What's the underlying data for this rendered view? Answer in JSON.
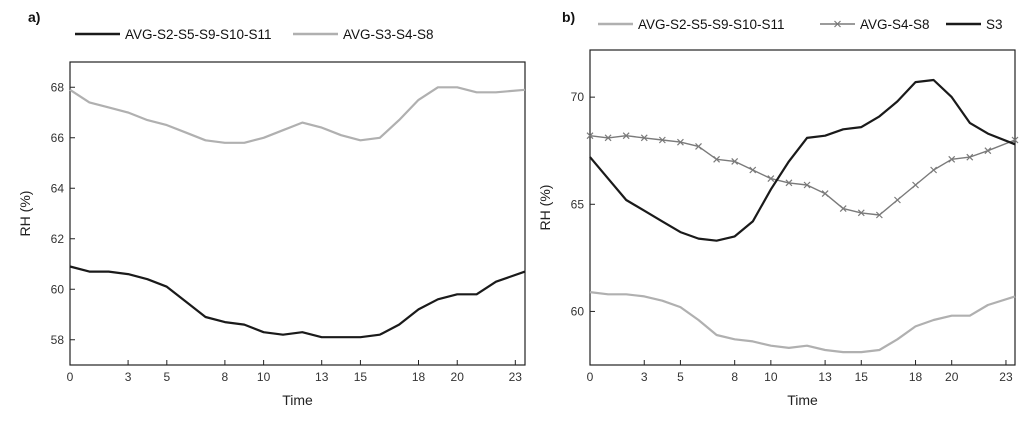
{
  "chart_data": [
    {
      "type": "line",
      "panel_label": "a)",
      "xlabel": "Time",
      "ylabel": "RH (%)",
      "xlim": [
        0,
        23.5
      ],
      "ylim": [
        57,
        69
      ],
      "x_ticks": [
        0,
        3,
        5,
        8,
        10,
        13,
        15,
        18,
        20,
        23
      ],
      "y_ticks": [
        58,
        60,
        62,
        64,
        66,
        68
      ],
      "legend_position": "top",
      "series": [
        {
          "name": "AVG-S2-S5-S9-S10-S11",
          "color": "#1a1a1a",
          "marker": "none",
          "x": [
            0,
            1,
            2,
            3,
            4,
            5,
            6,
            7,
            8,
            9,
            10,
            11,
            12,
            13,
            14,
            15,
            16,
            17,
            18,
            19,
            20,
            21,
            22,
            23.5
          ],
          "values": [
            60.9,
            60.7,
            60.7,
            60.6,
            60.4,
            60.1,
            59.5,
            58.9,
            58.7,
            58.6,
            58.3,
            58.2,
            58.3,
            58.1,
            58.1,
            58.1,
            58.2,
            58.6,
            59.2,
            59.6,
            59.8,
            59.8,
            60.3,
            60.7
          ]
        },
        {
          "name": "AVG-S3-S4-S8",
          "color": "#b0b0b0",
          "marker": "none",
          "x": [
            0,
            1,
            2,
            3,
            4,
            5,
            6,
            7,
            8,
            9,
            10,
            11,
            12,
            13,
            14,
            15,
            16,
            17,
            18,
            19,
            20,
            21,
            22,
            23.5
          ],
          "values": [
            67.9,
            67.4,
            67.2,
            67.0,
            66.7,
            66.5,
            66.2,
            65.9,
            65.8,
            65.8,
            66.0,
            66.3,
            66.6,
            66.4,
            66.1,
            65.9,
            66.0,
            66.7,
            67.5,
            68.0,
            68.0,
            67.8,
            67.8,
            67.9
          ]
        }
      ]
    },
    {
      "type": "line",
      "panel_label": "b)",
      "xlabel": "Time",
      "ylabel": "RH (%)",
      "xlim": [
        0,
        23.5
      ],
      "ylim": [
        57.5,
        72.2
      ],
      "x_ticks": [
        0,
        3,
        5,
        8,
        10,
        13,
        15,
        18,
        20,
        23
      ],
      "y_ticks": [
        60,
        65,
        70
      ],
      "legend_position": "top",
      "series": [
        {
          "name": "AVG-S2-S5-S9-S10-S11",
          "color": "#b0b0b0",
          "marker": "none",
          "x": [
            0,
            1,
            2,
            3,
            4,
            5,
            6,
            7,
            8,
            9,
            10,
            11,
            12,
            13,
            14,
            15,
            16,
            17,
            18,
            19,
            20,
            21,
            22,
            23.5
          ],
          "values": [
            60.9,
            60.8,
            60.8,
            60.7,
            60.5,
            60.2,
            59.6,
            58.9,
            58.7,
            58.6,
            58.4,
            58.3,
            58.4,
            58.2,
            58.1,
            58.1,
            58.2,
            58.7,
            59.3,
            59.6,
            59.8,
            59.8,
            60.3,
            60.7
          ]
        },
        {
          "name": "AVG-S4-S8",
          "color": "#7a7a7a",
          "marker": "x",
          "x": [
            0,
            1,
            2,
            3,
            4,
            5,
            6,
            7,
            8,
            9,
            10,
            11,
            12,
            13,
            14,
            15,
            16,
            17,
            18,
            19,
            20,
            21,
            22,
            23.5
          ],
          "values": [
            68.2,
            68.1,
            68.2,
            68.1,
            68.0,
            67.9,
            67.7,
            67.1,
            67.0,
            66.6,
            66.2,
            66.0,
            65.9,
            65.5,
            64.8,
            64.6,
            64.5,
            65.2,
            65.9,
            66.6,
            67.1,
            67.2,
            67.5,
            68.0
          ]
        },
        {
          "name": "S3",
          "color": "#1a1a1a",
          "marker": "none",
          "x": [
            0,
            1,
            2,
            3,
            4,
            5,
            6,
            7,
            8,
            9,
            10,
            11,
            12,
            13,
            14,
            15,
            16,
            17,
            18,
            19,
            20,
            21,
            22,
            23.5
          ],
          "values": [
            67.2,
            66.2,
            65.2,
            64.7,
            64.2,
            63.7,
            63.4,
            63.3,
            63.5,
            64.2,
            65.7,
            67.0,
            68.1,
            68.2,
            68.5,
            68.6,
            69.1,
            69.8,
            70.7,
            70.8,
            70.0,
            68.8,
            68.3,
            67.8
          ]
        }
      ]
    }
  ]
}
